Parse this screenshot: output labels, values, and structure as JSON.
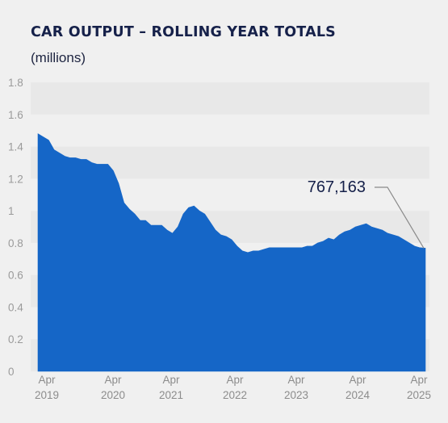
{
  "chart_data": {
    "type": "area",
    "title": "CAR OUTPUT – ROLLING YEAR TOTALS",
    "subtitle": "(millions)",
    "xlabel": "",
    "ylabel": "",
    "ylim": [
      0,
      1.8
    ],
    "yticks": [
      "0",
      "0.2",
      "0.4",
      "0.6",
      "0.8",
      "1",
      "1.2",
      "1.4",
      "1.6",
      "1.8"
    ],
    "xticks": [
      {
        "month": "Apr",
        "year": "2019"
      },
      {
        "month": "Apr",
        "year": "2020"
      },
      {
        "month": "Apr",
        "year": "2021"
      },
      {
        "month": "Apr",
        "year": "2022"
      },
      {
        "month": "Apr",
        "year": "2023"
      },
      {
        "month": "Apr",
        "year": "2024"
      },
      {
        "month": "Apr",
        "year": "2025"
      }
    ],
    "grid": "alternating horizontal bands",
    "fill_color": "#1566c7",
    "x": [
      "2019-04",
      "2019-05",
      "2019-06",
      "2019-07",
      "2019-08",
      "2019-09",
      "2019-10",
      "2019-11",
      "2019-12",
      "2020-01",
      "2020-02",
      "2020-03",
      "2020-04",
      "2020-05",
      "2020-06",
      "2020-07",
      "2020-08",
      "2020-09",
      "2020-10",
      "2020-11",
      "2020-12",
      "2021-01",
      "2021-02",
      "2021-03",
      "2021-04",
      "2021-05",
      "2021-06",
      "2021-07",
      "2021-08",
      "2021-09",
      "2021-10",
      "2021-11",
      "2021-12",
      "2022-01",
      "2022-02",
      "2022-03",
      "2022-04",
      "2022-05",
      "2022-06",
      "2022-07",
      "2022-08",
      "2022-09",
      "2022-10",
      "2022-11",
      "2022-12",
      "2023-01",
      "2023-02",
      "2023-03",
      "2023-04",
      "2023-05",
      "2023-06",
      "2023-07",
      "2023-08",
      "2023-09",
      "2023-10",
      "2023-11",
      "2023-12",
      "2024-01",
      "2024-02",
      "2024-03",
      "2024-04",
      "2024-05",
      "2024-06",
      "2024-07",
      "2024-08",
      "2024-09",
      "2024-10",
      "2024-11",
      "2024-12",
      "2025-01",
      "2025-02",
      "2025-03",
      "2025-04"
    ],
    "values": [
      1.48,
      1.46,
      1.44,
      1.38,
      1.36,
      1.34,
      1.33,
      1.33,
      1.32,
      1.32,
      1.3,
      1.29,
      1.29,
      1.29,
      1.25,
      1.17,
      1.05,
      1.01,
      0.98,
      0.94,
      0.94,
      0.91,
      0.91,
      0.91,
      0.88,
      0.86,
      0.9,
      0.98,
      1.02,
      1.03,
      1.0,
      0.98,
      0.93,
      0.88,
      0.85,
      0.84,
      0.82,
      0.78,
      0.75,
      0.74,
      0.75,
      0.75,
      0.76,
      0.77,
      0.77,
      0.77,
      0.77,
      0.77,
      0.77,
      0.77,
      0.78,
      0.78,
      0.8,
      0.81,
      0.83,
      0.82,
      0.85,
      0.87,
      0.88,
      0.9,
      0.91,
      0.92,
      0.9,
      0.89,
      0.88,
      0.86,
      0.85,
      0.84,
      0.82,
      0.8,
      0.78,
      0.77,
      0.767163
    ],
    "annotation": {
      "label": "767,163",
      "x": "2025-04",
      "value": 0.767163
    }
  }
}
